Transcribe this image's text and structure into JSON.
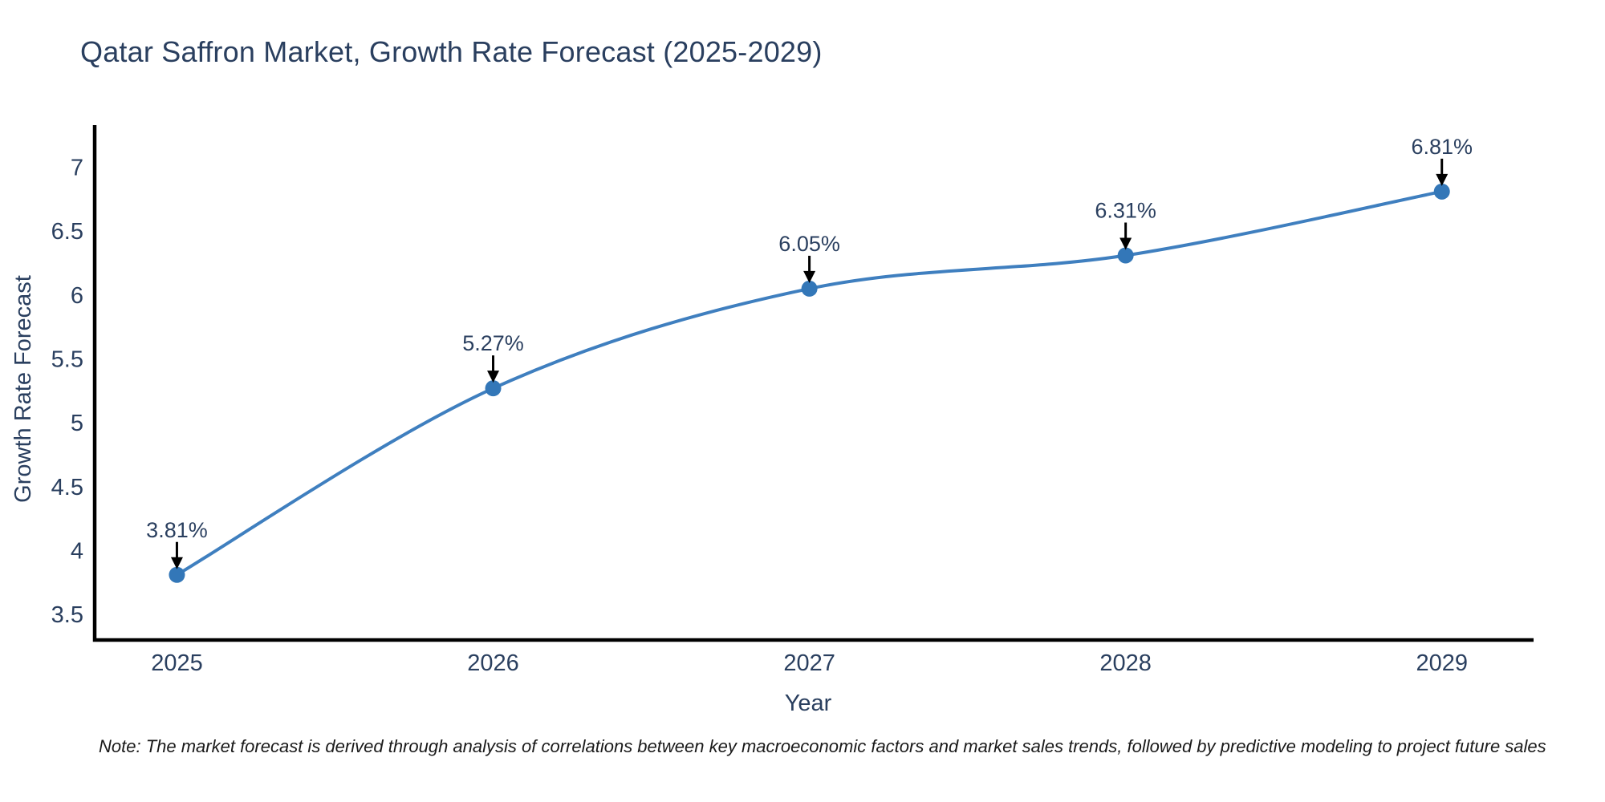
{
  "title": "Qatar Saffron Market, Growth Rate Forecast (2025-2029)",
  "note": "Note: The market forecast is derived through analysis of correlations between key macroeconomic factors and market sales trends, followed by predictive modeling to project future sales",
  "colors": {
    "title_text": "#2a3f5f",
    "tick_text": "#2a3f5f",
    "axis_label_text": "#2a3f5f",
    "annotation_text": "#2a3f5f",
    "axis_line": "#000000",
    "series_line": "#3f7fbf",
    "marker_fill": "#3377b8",
    "arrow": "#000000",
    "note_text": "#1a1a1a",
    "background": "#ffffff"
  },
  "chart_data": {
    "type": "line",
    "title": "Qatar Saffron Market, Growth Rate Forecast (2025-2029)",
    "xlabel": "Year",
    "ylabel": "Growth Rate Forecast",
    "x": [
      2025,
      2026,
      2027,
      2028,
      2029
    ],
    "y": [
      3.81,
      5.27,
      6.05,
      6.31,
      6.81
    ],
    "point_labels": [
      "3.81%",
      "5.27%",
      "6.05%",
      "6.31%",
      "6.81%"
    ],
    "x_tick_labels": [
      "2025",
      "2026",
      "2027",
      "2028",
      "2029"
    ],
    "y_ticks": [
      3.5,
      4,
      4.5,
      5,
      5.5,
      6,
      6.5,
      7
    ],
    "xlim": [
      2024.74,
      2029.29
    ],
    "ylim": [
      3.3,
      7.33
    ],
    "line_shape": "spline",
    "grid": false,
    "legend": false,
    "annotation_style": "value-label-with-down-arrow-to-point"
  }
}
